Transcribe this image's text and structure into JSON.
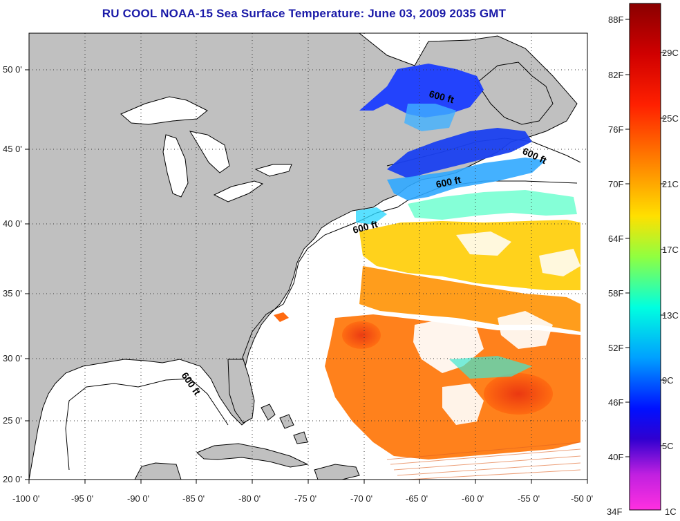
{
  "title": "RU COOL  NOAA-15  Sea Surface Temperature:  June 03, 2009 2035 GMT",
  "x_ticks": [
    "-100 0'",
    "-95 0'",
    "-90 0'",
    "-85 0'",
    "-80 0'",
    "-75 0'",
    "-70 0'",
    "-65 0'",
    "-60 0'",
    "-55 0'",
    "-50 0'"
  ],
  "y_ticks": [
    "50 0'",
    "45 0'",
    "40 0'",
    "35 0'",
    "30 0'",
    "25 0'",
    "20 0'"
  ],
  "contour_labels": [
    "600 ft",
    "600 ft",
    "600 ft",
    "600 ft",
    "600 ft"
  ],
  "colorbar": {
    "left_labels": [
      "88F",
      "82F",
      "76F",
      "70F",
      "64F",
      "58F",
      "52F",
      "46F",
      "40F",
      "34F"
    ],
    "right_labels": [
      "29C",
      "25C",
      "21C",
      "17C",
      "13C",
      "9C",
      "5C",
      "1C"
    ],
    "colors": [
      "#8a0000",
      "#ff0000",
      "#ff7f00",
      "#ffff00",
      "#00ffff",
      "#0000ff",
      "#ff00ff"
    ]
  },
  "colors": {
    "land": "#c0c0c0",
    "title": "#1a1aa8",
    "ocean_cloud": "#ffffff"
  }
}
